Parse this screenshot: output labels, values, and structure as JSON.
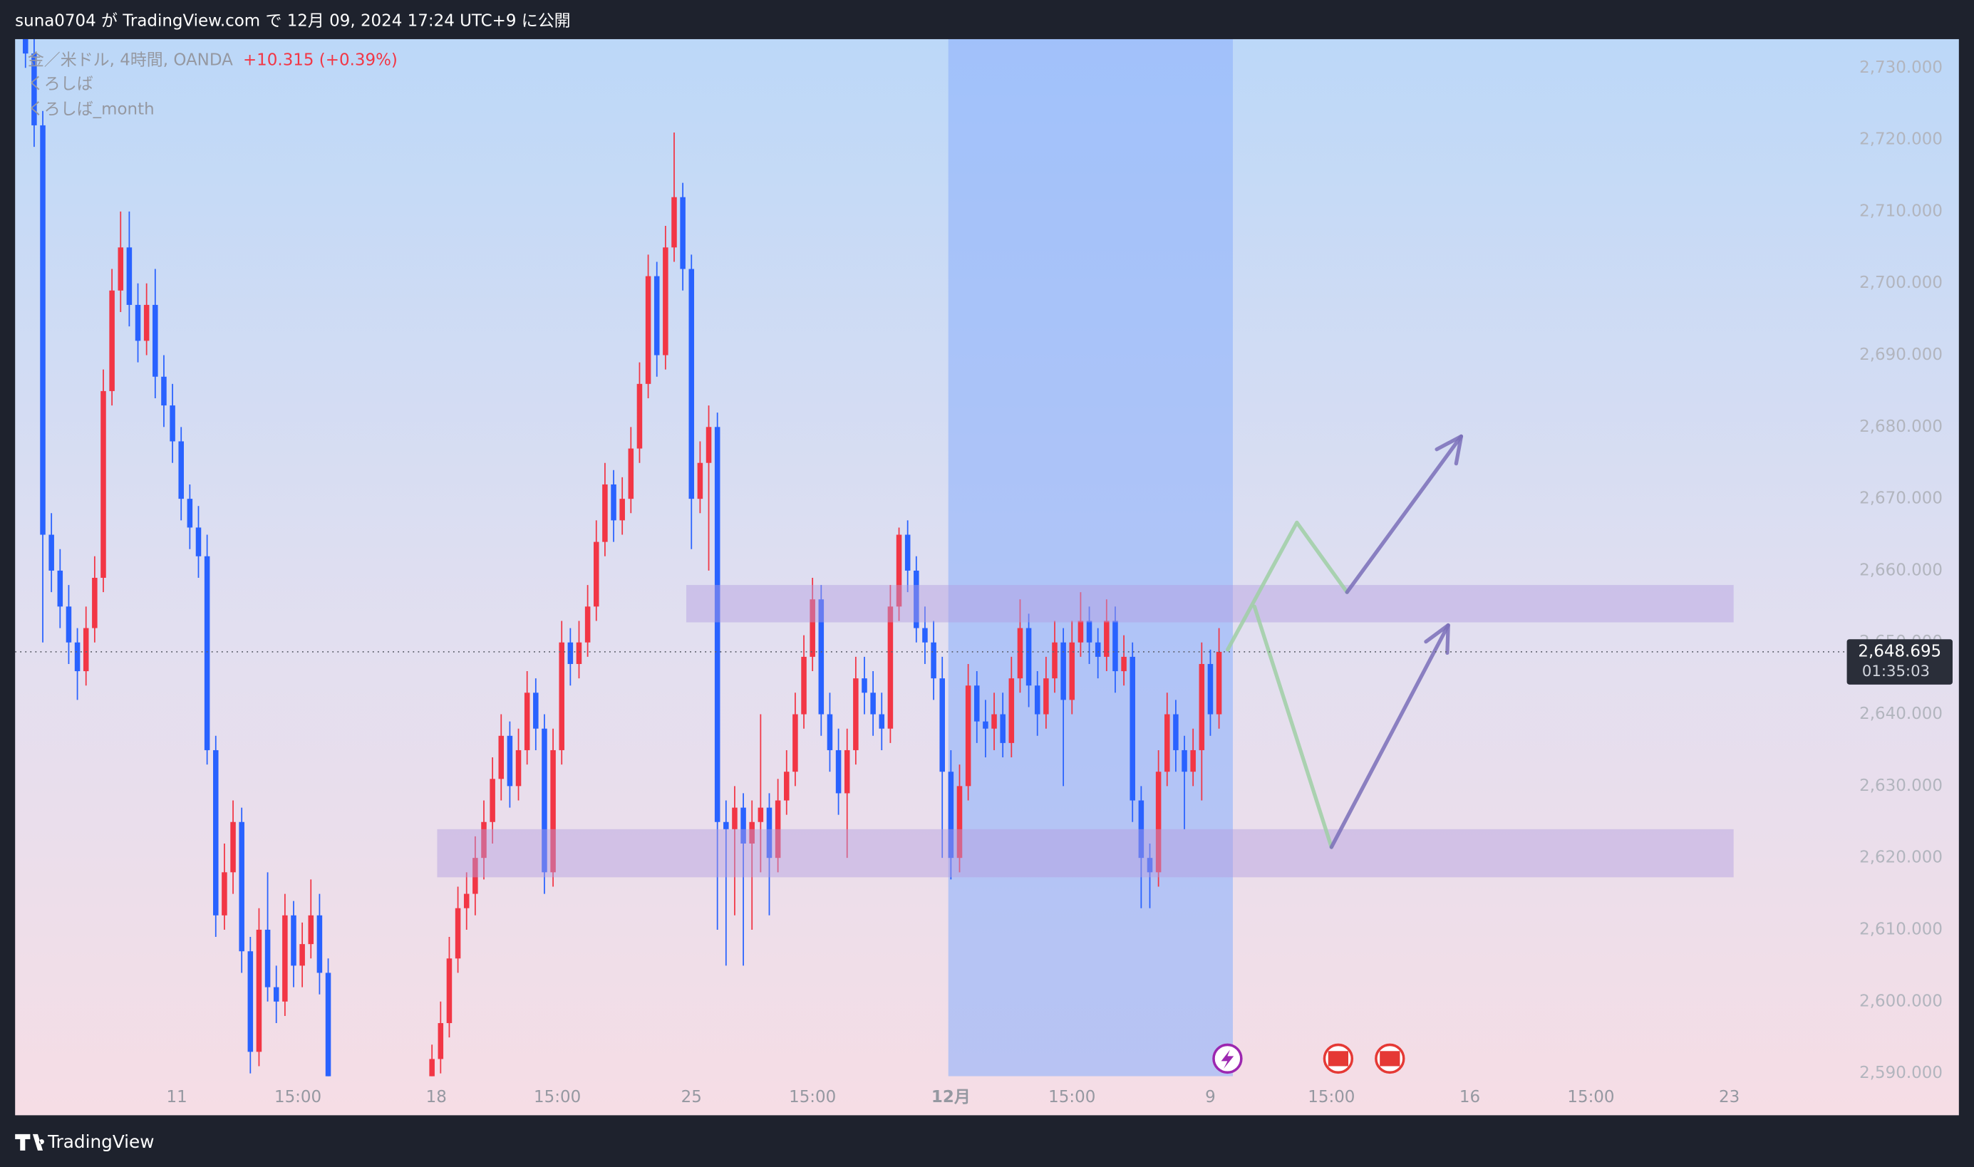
{
  "header": "suna0704 が TradingView.com で 12月 09, 2024 17:24 UTC+9 に公開",
  "footer": "TradingView",
  "chart_data": {
    "type": "candlestick",
    "legend": {
      "symbol": "金／米ドル, 4時間, OANDA",
      "change": "+10.315 (+0.39%)",
      "indicators": [
        "くろしば",
        "くろしば_month"
      ]
    },
    "up_color": "#f23645",
    "down_color": "#2962ff",
    "ylim": [
      2589.6,
      2734.0
    ],
    "yticks": [
      {
        "value": 2590,
        "label": "2,590.000"
      },
      {
        "value": 2600,
        "label": "2,600.000"
      },
      {
        "value": 2610,
        "label": "2,610.000"
      },
      {
        "value": 2620,
        "label": "2,620.000"
      },
      {
        "value": 2630,
        "label": "2,630.000"
      },
      {
        "value": 2640,
        "label": "2,640.000"
      },
      {
        "value": 2650,
        "label": "2,650.000"
      },
      {
        "value": 2660,
        "label": "2,660.000"
      },
      {
        "value": 2670,
        "label": "2,670.000"
      },
      {
        "value": 2680,
        "label": "2,680.000"
      },
      {
        "value": 2690,
        "label": "2,690.000"
      },
      {
        "value": 2700,
        "label": "2,700.000"
      },
      {
        "value": 2710,
        "label": "2,710.000"
      },
      {
        "value": 2720,
        "label": "2,720.000"
      },
      {
        "value": 2730,
        "label": "2,730.000"
      }
    ],
    "xlim": [
      -1.2,
      210.3
    ],
    "xticks": [
      {
        "value": 17.5,
        "label": "11"
      },
      {
        "value": 31.5,
        "label": "15:00"
      },
      {
        "value": 47.5,
        "label": "18"
      },
      {
        "value": 61.5,
        "label": "15:00"
      },
      {
        "value": 77,
        "label": "25"
      },
      {
        "value": 91,
        "label": "15:00"
      },
      {
        "value": 107,
        "label": "12月"
      },
      {
        "value": 121,
        "label": "15:00"
      },
      {
        "value": 137,
        "label": "9"
      },
      {
        "value": 151,
        "label": "15:00"
      },
      {
        "value": 167,
        "label": "16"
      },
      {
        "value": 181,
        "label": "15:00"
      },
      {
        "value": 197,
        "label": "23"
      }
    ],
    "last_price": {
      "value": 2648.695,
      "label": "2,648.695"
    },
    "countdown": "01:35:03",
    "highlight": {
      "from": 106.7,
      "to": 139.6
    },
    "zones": [
      {
        "x": [
          76.4,
          197.5
        ],
        "y": [
          2652.8,
          2658
        ]
      },
      {
        "x": [
          47.6,
          197.5
        ],
        "y": [
          2617.3,
          2624
        ]
      }
    ],
    "drawings": [
      {
        "color": "#9fcfa5",
        "arrow": false,
        "x": [
          139,
          147,
          152.8
        ],
        "y": [
          2649,
          2666.7,
          2657
        ]
      },
      {
        "color": "#9fcfa5",
        "arrow": false,
        "x": [
          142.1,
          151
        ],
        "y": [
          2655,
          2621.5
        ]
      },
      {
        "color": "#7a6fb8",
        "arrow": true,
        "x": [
          151,
          164.5
        ],
        "y": [
          2621.5,
          2652.4
        ]
      },
      {
        "color": "#7a6fb8",
        "arrow": true,
        "x": [
          152.8,
          166
        ],
        "y": [
          2657,
          2678.7
        ]
      }
    ],
    "candles": [
      [
        2736,
        2738,
        2730,
        2732
      ],
      [
        2732,
        2734,
        2719,
        2722
      ],
      [
        2722,
        2724,
        2650,
        2665
      ],
      [
        2665,
        2668,
        2657,
        2660
      ],
      [
        2660,
        2663,
        2652,
        2655
      ],
      [
        2655,
        2658,
        2647,
        2650
      ],
      [
        2650,
        2652,
        2642,
        2646
      ],
      [
        2646,
        2655,
        2644,
        2652
      ],
      [
        2652,
        2662,
        2650,
        2659
      ],
      [
        2659,
        2688,
        2657,
        2685
      ],
      [
        2685,
        2702,
        2683,
        2699
      ],
      [
        2699,
        2710,
        2696,
        2705
      ],
      [
        2705,
        2710,
        2694,
        2697
      ],
      [
        2697,
        2700,
        2689,
        2692
      ],
      [
        2692,
        2700,
        2690,
        2697
      ],
      [
        2697,
        2702,
        2684,
        2687
      ],
      [
        2687,
        2690,
        2680,
        2683
      ],
      [
        2683,
        2686,
        2675,
        2678
      ],
      [
        2678,
        2680,
        2667,
        2670
      ],
      [
        2670,
        2672,
        2663,
        2666
      ],
      [
        2666,
        2669,
        2659,
        2662
      ],
      [
        2662,
        2665,
        2633,
        2635
      ],
      [
        2635,
        2637,
        2609,
        2612
      ],
      [
        2612,
        2622,
        2610,
        2618
      ],
      [
        2618,
        2628,
        2615,
        2625
      ],
      [
        2625,
        2627,
        2604,
        2607
      ],
      [
        2607,
        2609,
        2590,
        2593
      ],
      [
        2593,
        2613,
        2591,
        2610
      ],
      [
        2610,
        2618,
        2600,
        2602
      ],
      [
        2602,
        2605,
        2597,
        2600
      ],
      [
        2600,
        2615,
        2598,
        2612
      ],
      [
        2612,
        2614,
        2602,
        2605
      ],
      [
        2605,
        2611,
        2602,
        2608
      ],
      [
        2608,
        2617,
        2606,
        2612
      ],
      [
        2612,
        2615,
        2601,
        2604
      ],
      [
        2604,
        2606,
        2585,
        2588
      ],
      null,
      null,
      null,
      null,
      null,
      null,
      null,
      null,
      null,
      null,
      null,
      [
        2589,
        2594,
        2587,
        2592
      ],
      [
        2592,
        2600,
        2590,
        2597
      ],
      [
        2597,
        2609,
        2595,
        2606
      ],
      [
        2606,
        2616,
        2604,
        2613
      ],
      [
        2613,
        2618,
        2610,
        2615
      ],
      [
        2615,
        2623,
        2612,
        2620
      ],
      [
        2620,
        2628,
        2617,
        2625
      ],
      [
        2625,
        2634,
        2622,
        2631
      ],
      [
        2631,
        2640,
        2628,
        2637
      ],
      [
        2637,
        2639,
        2627,
        2630
      ],
      [
        2630,
        2638,
        2628,
        2635
      ],
      [
        2635,
        2646,
        2633,
        2643
      ],
      [
        2643,
        2645,
        2635,
        2638
      ],
      [
        2638,
        2640,
        2615,
        2618
      ],
      [
        2618,
        2638,
        2616,
        2635
      ],
      [
        2635,
        2653,
        2633,
        2650
      ],
      [
        2650,
        2652,
        2644,
        2647
      ],
      [
        2647,
        2653,
        2645,
        2650
      ],
      [
        2650,
        2658,
        2648,
        2655
      ],
      [
        2655,
        2667,
        2653,
        2664
      ],
      [
        2664,
        2675,
        2662,
        2672
      ],
      [
        2672,
        2674,
        2664,
        2667
      ],
      [
        2667,
        2673,
        2665,
        2670
      ],
      [
        2670,
        2680,
        2668,
        2677
      ],
      [
        2677,
        2689,
        2675,
        2686
      ],
      [
        2686,
        2704,
        2684,
        2701
      ],
      [
        2701,
        2703,
        2687,
        2690
      ],
      [
        2690,
        2708,
        2688,
        2705
      ],
      [
        2705,
        2721,
        2703,
        2712
      ],
      [
        2712,
        2714,
        2699,
        2702
      ],
      [
        2702,
        2704,
        2663,
        2670
      ],
      [
        2670,
        2678,
        2668,
        2675
      ],
      [
        2675,
        2683,
        2660,
        2680
      ],
      [
        2680,
        2682,
        2610,
        2625
      ],
      [
        2625,
        2628,
        2605,
        2624
      ],
      [
        2624,
        2630,
        2612,
        2627
      ],
      [
        2627,
        2629,
        2605,
        2622
      ],
      [
        2622,
        2628,
        2610,
        2625
      ],
      [
        2625,
        2640,
        2618,
        2627
      ],
      [
        2627,
        2629,
        2612,
        2620
      ],
      [
        2620,
        2631,
        2618,
        2628
      ],
      [
        2628,
        2635,
        2626,
        2632
      ],
      [
        2632,
        2643,
        2630,
        2640
      ],
      [
        2640,
        2651,
        2638,
        2648
      ],
      [
        2648,
        2659,
        2646,
        2656
      ],
      [
        2656,
        2658,
        2637,
        2640
      ],
      [
        2640,
        2643,
        2632,
        2635
      ],
      [
        2635,
        2638,
        2626,
        2629
      ],
      [
        2629,
        2638,
        2620,
        2635
      ],
      [
        2635,
        2648,
        2633,
        2645
      ],
      [
        2645,
        2648,
        2640,
        2643
      ],
      [
        2643,
        2646,
        2637,
        2640
      ],
      [
        2640,
        2643,
        2635,
        2638
      ],
      [
        2638,
        2658,
        2636,
        2655
      ],
      [
        2655,
        2666,
        2653,
        2665
      ],
      [
        2665,
        2667,
        2657,
        2660
      ],
      [
        2660,
        2662,
        2650,
        2652
      ],
      [
        2652,
        2655,
        2647,
        2650
      ],
      [
        2650,
        2653,
        2642,
        2645
      ],
      [
        2645,
        2648,
        2620,
        2632
      ],
      [
        2632,
        2635,
        2617,
        2620
      ],
      [
        2620,
        2633,
        2618,
        2630
      ],
      [
        2630,
        2647,
        2628,
        2644
      ],
      [
        2644,
        2646,
        2636,
        2639
      ],
      [
        2639,
        2642,
        2634,
        2638
      ],
      [
        2638,
        2643,
        2635,
        2640
      ],
      [
        2640,
        2643,
        2634,
        2636
      ],
      [
        2636,
        2648,
        2634,
        2645
      ],
      [
        2645,
        2656,
        2643,
        2652
      ],
      [
        2652,
        2654,
        2641,
        2644
      ],
      [
        2644,
        2646,
        2637,
        2640
      ],
      [
        2640,
        2648,
        2638,
        2645
      ],
      [
        2645,
        2653,
        2643,
        2650
      ],
      [
        2650,
        2652,
        2630,
        2642
      ],
      [
        2642,
        2653,
        2640,
        2650
      ],
      [
        2650,
        2657,
        2648,
        2653
      ],
      [
        2653,
        2655,
        2647,
        2650
      ],
      [
        2650,
        2652,
        2645,
        2648
      ],
      [
        2648,
        2656,
        2646,
        2653
      ],
      [
        2653,
        2655,
        2643,
        2646
      ],
      [
        2646,
        2651,
        2644,
        2648
      ],
      [
        2648,
        2650,
        2625,
        2628
      ],
      [
        2628,
        2630,
        2613,
        2620
      ],
      [
        2620,
        2622,
        2613,
        2618
      ],
      [
        2618,
        2635,
        2616,
        2632
      ],
      [
        2632,
        2643,
        2630,
        2640
      ],
      [
        2640,
        2642,
        2632,
        2635
      ],
      [
        2635,
        2637,
        2624,
        2632
      ],
      [
        2632,
        2638,
        2630,
        2635
      ],
      [
        2635,
        2650,
        2628,
        2647
      ],
      [
        2647,
        2649,
        2637,
        2640
      ],
      [
        2640,
        2652,
        2638,
        2648.695
      ]
    ]
  }
}
